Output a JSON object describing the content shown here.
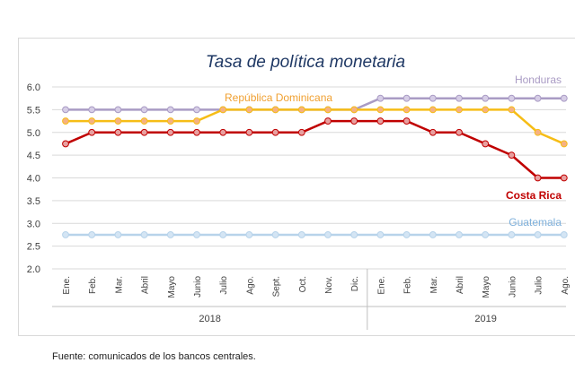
{
  "source_note": "Fuente: comunicados de los bancos centrales.",
  "chart_data": {
    "type": "line",
    "title": "Tasa de política monetaria",
    "xlabel": "",
    "ylabel": "",
    "ylim": [
      2.0,
      6.0
    ],
    "yticks": [
      "6.0",
      "5.5",
      "5.0",
      "4.5",
      "4.0",
      "3.5",
      "3.0",
      "2.5",
      "2.0"
    ],
    "grid": "horizontal",
    "categories": [
      "Ene.",
      "Feb.",
      "Mar.",
      "Abril",
      "Mayo",
      "Junio",
      "Julio",
      "Ago.",
      "Sept.",
      "Oct.",
      "Nov.",
      "Dic.",
      "Ene.",
      "Feb.",
      "Mar.",
      "Abril",
      "Mayo",
      "Junio",
      "Julio",
      "Ago."
    ],
    "year_groups": [
      {
        "label": "2018",
        "count": 12
      },
      {
        "label": "2019",
        "count": 8
      }
    ],
    "series": [
      {
        "name": "Honduras",
        "color": "#a99bc4",
        "marker_fill": "#d6cde6",
        "values": [
          5.5,
          5.5,
          5.5,
          5.5,
          5.5,
          5.5,
          5.5,
          5.5,
          5.5,
          5.5,
          5.5,
          5.5,
          5.75,
          5.75,
          5.75,
          5.75,
          5.75,
          5.75,
          5.75,
          5.75
        ]
      },
      {
        "name": "República Dominicana",
        "color": "#f6bd16",
        "marker_fill": "#f5b183",
        "values": [
          5.25,
          5.25,
          5.25,
          5.25,
          5.25,
          5.25,
          5.5,
          5.5,
          5.5,
          5.5,
          5.5,
          5.5,
          5.5,
          5.5,
          5.5,
          5.5,
          5.5,
          5.5,
          5.0,
          4.75
        ]
      },
      {
        "name": "Costa Rica",
        "color": "#c00000",
        "marker_fill": "#e8a0a0",
        "values": [
          4.75,
          5.0,
          5.0,
          5.0,
          5.0,
          5.0,
          5.0,
          5.0,
          5.0,
          5.0,
          5.25,
          5.25,
          5.25,
          5.25,
          5.0,
          5.0,
          4.75,
          4.5,
          4.0,
          4.0
        ]
      },
      {
        "name": "Guatemala",
        "color": "#b7d3ea",
        "marker_fill": "#d4e5f4",
        "values": [
          2.75,
          2.75,
          2.75,
          2.75,
          2.75,
          2.75,
          2.75,
          2.75,
          2.75,
          2.75,
          2.75,
          2.75,
          2.75,
          2.75,
          2.75,
          2.75,
          2.75,
          2.75,
          2.75,
          2.75
        ]
      }
    ],
    "legend_colors": {
      "Honduras": "#a99bc4",
      "República Dominicana": "#f0a030",
      "Costa Rica": "#c00000",
      "Guatemala": "#7fb1dc"
    }
  }
}
